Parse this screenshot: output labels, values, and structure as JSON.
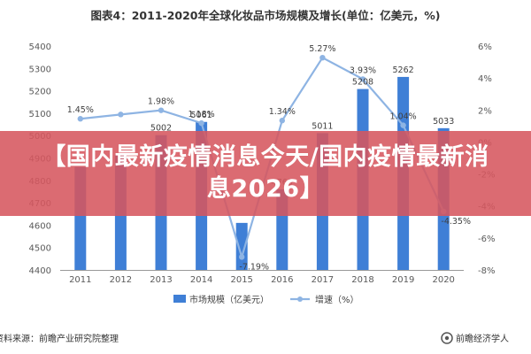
{
  "chart_data": {
    "type": "bar",
    "title": "图表4：2011-2020年全球化妆品市场规模及增长(单位：亿美元，%)",
    "categories": [
      "2011",
      "2012",
      "2013",
      "2014",
      "2015",
      "2016",
      "2017",
      "2018",
      "2019",
      "2020"
    ],
    "series": [
      {
        "name": "市场规模（亿美元）",
        "type": "bar",
        "axis": "left",
        "values": [
          4860,
          4915,
          5002,
          5061,
          4610,
          4760,
          5011,
          5208,
          5262,
          5033
        ],
        "color": "#3f7fd6"
      },
      {
        "name": "增速（%）",
        "type": "line",
        "axis": "right",
        "values": [
          1.45,
          1.72,
          1.98,
          1.18,
          -7.19,
          1.34,
          5.27,
          3.93,
          1.04,
          -4.35
        ],
        "color": "#8eb4e3"
      }
    ],
    "visible_labels": [
      {
        "series": 1,
        "index": 0,
        "text": "1.45%"
      },
      {
        "series": 1,
        "index": 2,
        "text": "1.98%"
      },
      {
        "series": 0,
        "index": 2,
        "text": "5002"
      },
      {
        "series": 0,
        "index": 3,
        "text": "5061"
      },
      {
        "series": 1,
        "index": 3,
        "text": "1.18%"
      },
      {
        "series": 1,
        "index": 4,
        "text": "-7.19%"
      },
      {
        "series": 0,
        "index": 5,
        "text": "4760"
      },
      {
        "series": 1,
        "index": 5,
        "text": "1.34%"
      },
      {
        "series": 0,
        "index": 6,
        "text": "5011"
      },
      {
        "series": 1,
        "index": 6,
        "text": "5.27%"
      },
      {
        "series": 0,
        "index": 7,
        "text": "5208"
      },
      {
        "series": 1,
        "index": 7,
        "text": "3.93%"
      },
      {
        "series": 0,
        "index": 8,
        "text": "5262"
      },
      {
        "series": 1,
        "index": 8,
        "text": "1.04%"
      },
      {
        "series": 0,
        "index": 9,
        "text": "5033"
      },
      {
        "series": 1,
        "index": 9,
        "text": "-4.35%"
      }
    ],
    "left_axis": {
      "min": 4400,
      "max": 5400,
      "ticks": [
        "4400",
        "4500",
        "4600",
        "4700",
        "4800",
        "4900",
        "5000",
        "5100",
        "5200",
        "5300",
        "5400"
      ]
    },
    "right_axis": {
      "min": -8,
      "max": 6,
      "ticks": [
        "-8%",
        "-6%",
        "-4%",
        "-2%",
        "0%",
        "2%",
        "4%",
        "6%"
      ]
    },
    "grid": false,
    "legend_position": "bottom"
  },
  "source": "资料来源：前瞻产业研究院整理",
  "brand": "前瞻经济学人",
  "overlay_text": "【国内最新疫情消息今天/国内疫情最新消息2026】"
}
